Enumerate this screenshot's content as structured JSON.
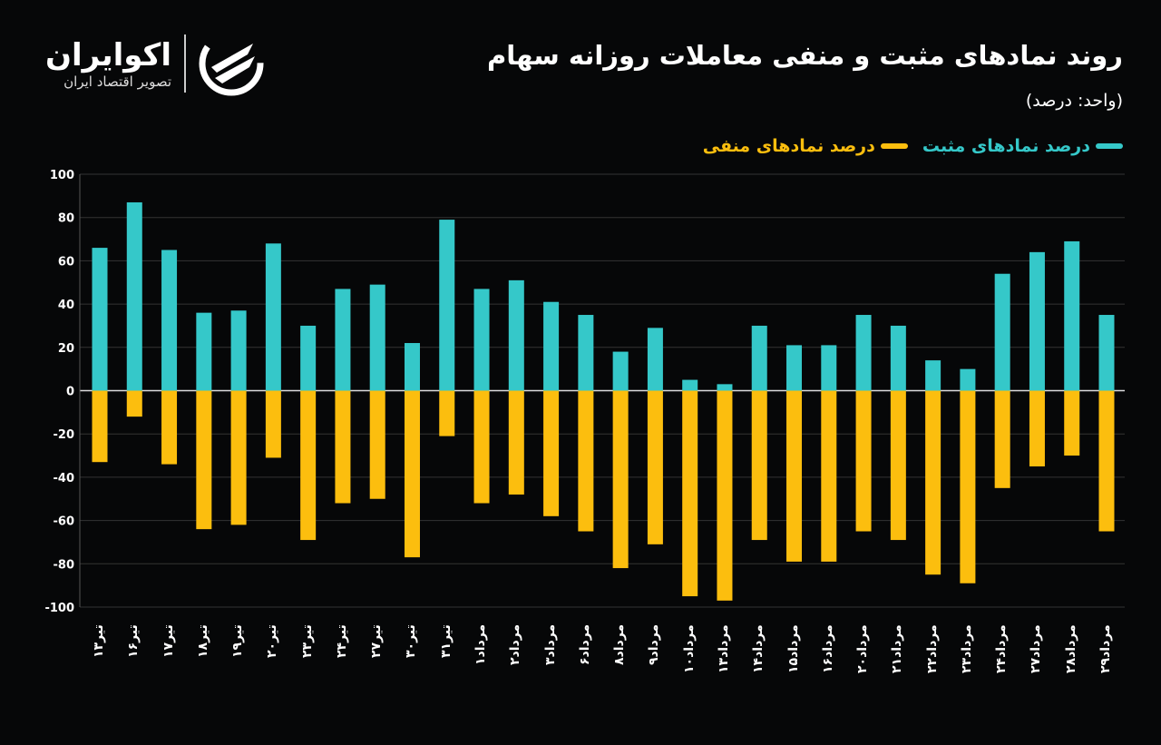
{
  "header": {
    "title": "روند نمادهای مثبت و منفی معاملات روزانه سهام",
    "subtitle": "(واحد: درصد)"
  },
  "logo": {
    "name": "اکوایران",
    "tagline": "تصویر اقتصاد ایران"
  },
  "colors": {
    "positive": "#35c8c9",
    "negative": "#fcbe0e",
    "background": "#060708"
  },
  "chart_data": {
    "type": "bar",
    "ylim": [
      -100,
      100
    ],
    "yticks": [
      "100",
      "80",
      "60",
      "40",
      "20",
      "0",
      "-20",
      "-40",
      "-60",
      "-80",
      "-100"
    ],
    "grid": true,
    "legend_position": "top-right",
    "categories": [
      "تیر۱۳",
      "تیر۱۶",
      "تیر۱۷",
      "تیر۱۸",
      "تیر۱۹",
      "تیر۲۰",
      "تیر۲۳",
      "تیر۲۴",
      "تیر۲۷",
      "تیر۳۰",
      "تیر۳۱",
      "مرداد۱",
      "مرداد۲",
      "مرداد۳",
      "مرداد۶",
      "مرداد۸",
      "مرداد۹",
      "مرداد۱۰",
      "مرداد۱۳",
      "مرداد۱۴",
      "مرداد۱۵",
      "مرداد۱۶",
      "مرداد۲۰",
      "مرداد۲۱",
      "مرداد۲۲",
      "مرداد۲۳",
      "مرداد۲۴",
      "مرداد۲۷",
      "مرداد۲۸",
      "مرداد۲۹"
    ],
    "series": [
      {
        "name": "درصد نمادهای مثبت",
        "values": [
          66,
          87,
          65,
          36,
          37,
          68,
          30,
          47,
          49,
          22,
          79,
          47,
          51,
          41,
          35,
          18,
          29,
          5,
          3,
          30,
          21,
          21,
          35,
          30,
          14,
          10,
          54,
          64,
          69,
          35
        ]
      },
      {
        "name": "درصد نمادهای منفی",
        "values": [
          -33,
          -12,
          -34,
          -64,
          -62,
          -31,
          -69,
          -52,
          -50,
          -77,
          -21,
          -52,
          -48,
          -58,
          -65,
          -82,
          -71,
          -95,
          -97,
          -69,
          -79,
          -79,
          -65,
          -69,
          -85,
          -89,
          -45,
          -35,
          -30,
          -65
        ]
      }
    ]
  }
}
